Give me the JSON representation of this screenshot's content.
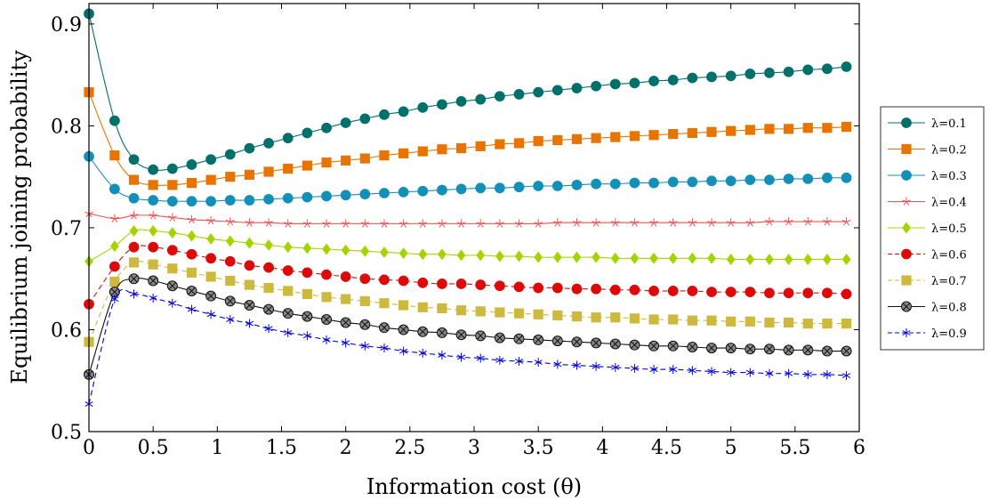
{
  "chart_data": {
    "type": "line",
    "title": "",
    "xlabel": "Information cost (θ)",
    "ylabel": "Equilibrium joining probability",
    "xlim": [
      0,
      6
    ],
    "ylim": [
      0.5,
      0.92
    ],
    "grid": false,
    "legend_position": "outside-right",
    "x_ticks": [
      {
        "value": 0,
        "label": "0"
      },
      {
        "value": 0.5,
        "label": "0.5"
      },
      {
        "value": 1,
        "label": "1"
      },
      {
        "value": 1.5,
        "label": "1.5"
      },
      {
        "value": 2,
        "label": "2"
      },
      {
        "value": 2.5,
        "label": "2.5"
      },
      {
        "value": 3,
        "label": "3"
      },
      {
        "value": 3.5,
        "label": "3.5"
      },
      {
        "value": 4,
        "label": "4"
      },
      {
        "value": 4.5,
        "label": "4.5"
      },
      {
        "value": 5,
        "label": "5"
      },
      {
        "value": 5.5,
        "label": "5.5"
      },
      {
        "value": 6,
        "label": "6"
      }
    ],
    "y_ticks": [
      {
        "value": 0.5,
        "label": "0.5"
      },
      {
        "value": 0.6,
        "label": "0.6"
      },
      {
        "value": 0.7,
        "label": "0.7"
      },
      {
        "value": 0.8,
        "label": "0.8"
      },
      {
        "value": 0.9,
        "label": "0.9"
      }
    ],
    "x": [
      0,
      0.2,
      0.35,
      0.5,
      0.65,
      0.8,
      0.95,
      1.1,
      1.25,
      1.4,
      1.55,
      1.7,
      1.85,
      2.0,
      2.15,
      2.3,
      2.45,
      2.6,
      2.75,
      2.9,
      3.05,
      3.2,
      3.35,
      3.5,
      3.65,
      3.8,
      3.95,
      4.1,
      4.25,
      4.4,
      4.55,
      4.7,
      4.85,
      5.0,
      5.15,
      5.3,
      5.45,
      5.6,
      5.75,
      5.9
    ],
    "series": [
      {
        "name": "λ=0.1",
        "color": "#00706b",
        "marker": "circle",
        "dashed": false,
        "values": [
          0.91,
          0.805,
          0.767,
          0.757,
          0.758,
          0.762,
          0.767,
          0.772,
          0.778,
          0.783,
          0.788,
          0.793,
          0.798,
          0.803,
          0.807,
          0.811,
          0.814,
          0.818,
          0.821,
          0.824,
          0.826,
          0.829,
          0.831,
          0.833,
          0.835,
          0.837,
          0.839,
          0.841,
          0.842,
          0.844,
          0.845,
          0.847,
          0.848,
          0.849,
          0.851,
          0.852,
          0.853,
          0.855,
          0.856,
          0.858
        ]
      },
      {
        "name": "λ=0.2",
        "color": "#e87400",
        "marker": "square",
        "dashed": false,
        "values": [
          0.833,
          0.771,
          0.747,
          0.742,
          0.742,
          0.744,
          0.747,
          0.75,
          0.752,
          0.755,
          0.758,
          0.761,
          0.764,
          0.766,
          0.768,
          0.771,
          0.773,
          0.775,
          0.777,
          0.778,
          0.78,
          0.782,
          0.783,
          0.785,
          0.786,
          0.787,
          0.788,
          0.789,
          0.79,
          0.791,
          0.792,
          0.793,
          0.794,
          0.795,
          0.796,
          0.797,
          0.797,
          0.798,
          0.798,
          0.799
        ]
      },
      {
        "name": "λ=0.3",
        "color": "#1490b8",
        "marker": "circle",
        "dashed": false,
        "values": [
          0.77,
          0.738,
          0.729,
          0.727,
          0.726,
          0.726,
          0.726,
          0.727,
          0.727,
          0.728,
          0.729,
          0.73,
          0.731,
          0.732,
          0.733,
          0.734,
          0.735,
          0.736,
          0.737,
          0.738,
          0.739,
          0.739,
          0.74,
          0.741,
          0.741,
          0.742,
          0.743,
          0.743,
          0.744,
          0.744,
          0.745,
          0.745,
          0.746,
          0.746,
          0.747,
          0.747,
          0.748,
          0.748,
          0.749,
          0.749
        ]
      },
      {
        "name": "λ=0.4",
        "color": "#f05050",
        "marker": "star",
        "dashed": false,
        "values": [
          0.714,
          0.709,
          0.712,
          0.712,
          0.71,
          0.708,
          0.707,
          0.706,
          0.705,
          0.705,
          0.704,
          0.704,
          0.704,
          0.704,
          0.704,
          0.704,
          0.704,
          0.704,
          0.704,
          0.704,
          0.704,
          0.704,
          0.704,
          0.704,
          0.705,
          0.705,
          0.705,
          0.705,
          0.705,
          0.705,
          0.705,
          0.705,
          0.705,
          0.705,
          0.705,
          0.706,
          0.706,
          0.706,
          0.706,
          0.706
        ]
      },
      {
        "name": "λ=0.5",
        "color": "#a4d400",
        "marker": "diamond",
        "dashed": false,
        "values": [
          0.667,
          0.682,
          0.697,
          0.697,
          0.695,
          0.692,
          0.689,
          0.687,
          0.685,
          0.683,
          0.681,
          0.68,
          0.679,
          0.678,
          0.677,
          0.676,
          0.675,
          0.674,
          0.674,
          0.673,
          0.673,
          0.672,
          0.672,
          0.671,
          0.671,
          0.671,
          0.671,
          0.67,
          0.67,
          0.67,
          0.67,
          0.67,
          0.67,
          0.669,
          0.669,
          0.669,
          0.669,
          0.669,
          0.669,
          0.669
        ]
      },
      {
        "name": "λ=0.6",
        "color": "#dd0a0a",
        "marker": "circle",
        "dashed": true,
        "values": [
          0.625,
          0.662,
          0.681,
          0.681,
          0.678,
          0.674,
          0.67,
          0.667,
          0.663,
          0.661,
          0.658,
          0.656,
          0.654,
          0.652,
          0.65,
          0.649,
          0.648,
          0.646,
          0.645,
          0.645,
          0.644,
          0.643,
          0.642,
          0.641,
          0.641,
          0.64,
          0.64,
          0.639,
          0.639,
          0.638,
          0.638,
          0.638,
          0.637,
          0.637,
          0.637,
          0.636,
          0.636,
          0.636,
          0.636,
          0.635
        ]
      },
      {
        "name": "λ=0.7",
        "color": "#cdb93e",
        "marker": "square",
        "dashed": true,
        "values": [
          0.588,
          0.647,
          0.666,
          0.664,
          0.66,
          0.656,
          0.652,
          0.648,
          0.644,
          0.641,
          0.638,
          0.635,
          0.632,
          0.63,
          0.628,
          0.626,
          0.624,
          0.622,
          0.621,
          0.619,
          0.618,
          0.617,
          0.616,
          0.615,
          0.614,
          0.613,
          0.612,
          0.612,
          0.611,
          0.61,
          0.61,
          0.609,
          0.609,
          0.608,
          0.608,
          0.607,
          0.607,
          0.606,
          0.606,
          0.606
        ]
      },
      {
        "name": "λ=0.8",
        "color": "#111111",
        "marker": "otimes",
        "dashed": false,
        "values": [
          0.556,
          0.637,
          0.65,
          0.648,
          0.643,
          0.638,
          0.633,
          0.628,
          0.624,
          0.62,
          0.616,
          0.613,
          0.61,
          0.607,
          0.605,
          0.602,
          0.6,
          0.598,
          0.597,
          0.595,
          0.594,
          0.592,
          0.591,
          0.59,
          0.589,
          0.588,
          0.587,
          0.586,
          0.585,
          0.584,
          0.584,
          0.583,
          0.582,
          0.582,
          0.581,
          0.581,
          0.58,
          0.58,
          0.579,
          0.579
        ]
      },
      {
        "name": "λ=0.9",
        "color": "#0000e0",
        "marker": "asterisk",
        "dashed": true,
        "values": [
          0.527,
          0.63,
          0.635,
          0.631,
          0.626,
          0.62,
          0.615,
          0.61,
          0.606,
          0.601,
          0.597,
          0.594,
          0.59,
          0.587,
          0.584,
          0.582,
          0.579,
          0.577,
          0.575,
          0.573,
          0.572,
          0.57,
          0.569,
          0.568,
          0.566,
          0.565,
          0.564,
          0.563,
          0.562,
          0.561,
          0.561,
          0.56,
          0.559,
          0.558,
          0.558,
          0.557,
          0.557,
          0.556,
          0.556,
          0.555
        ]
      }
    ]
  }
}
